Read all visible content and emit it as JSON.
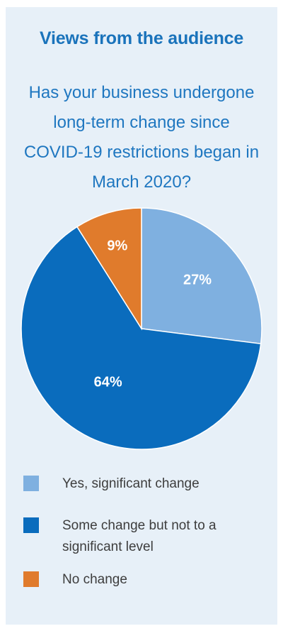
{
  "header": {
    "title": "Views from the audience",
    "question_lines": [
      "Has your business undergone",
      "long-term change since",
      "COVID-19 restrictions began in",
      "March 2020?"
    ]
  },
  "chart_data": {
    "type": "pie",
    "slices": [
      {
        "label": "Yes, significant change",
        "value": 27,
        "display": "27%",
        "color": "#7fb0e0"
      },
      {
        "label": "Some change but not to a significant level",
        "value": 64,
        "display": "64%",
        "color": "#0a6cbd"
      },
      {
        "label": "No change",
        "value": 9,
        "display": "9%",
        "color": "#e07b2c"
      }
    ],
    "legend_placement": "bottom"
  },
  "legend": {
    "items": [
      {
        "label": "Yes, significant change",
        "color": "#7fb0e0"
      },
      {
        "label": "Some change but not to a significant level",
        "color": "#0a6cbd"
      },
      {
        "label": "No change",
        "color": "#e07b2c"
      }
    ]
  }
}
